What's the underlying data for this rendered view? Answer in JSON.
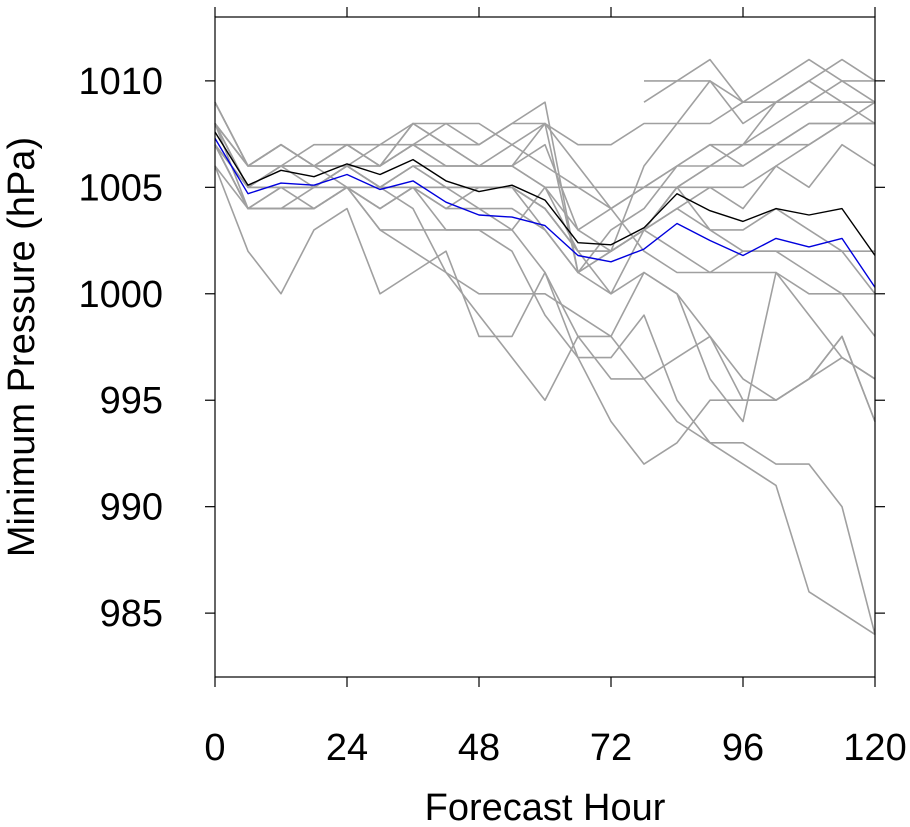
{
  "chart_data": {
    "type": "line",
    "xlabel": "Forecast Hour",
    "ylabel": "Minimum Pressure (hPa)",
    "xlim": [
      0,
      120
    ],
    "ylim": [
      982,
      1013
    ],
    "xticks": [
      0,
      24,
      48,
      72,
      96,
      120
    ],
    "xtick_labels": [
      "0",
      "24",
      "48",
      "72",
      "96",
      "120"
    ],
    "yticks": [
      985,
      990,
      995,
      1000,
      1005,
      1010
    ],
    "ytick_labels": [
      "985",
      "990",
      "995",
      "1000",
      "1005",
      "1010"
    ],
    "grid": false,
    "legend": "none",
    "colors": {
      "members": "#a0a0a0",
      "black_line": "#000000",
      "blue_line": "#0000dd"
    },
    "series": [
      {
        "color": "#a0a0a0",
        "x": [
          0,
          6,
          12,
          18,
          24,
          30,
          36,
          42,
          48,
          54,
          60,
          66,
          72,
          78,
          84,
          90,
          96,
          102,
          108,
          114,
          120
        ],
        "y": [
          1008,
          1005,
          1005,
          1005,
          1006,
          1005,
          1005,
          1005,
          1005,
          1005,
          1004,
          1002,
          1002,
          1003,
          1005,
          1006,
          1006,
          1007,
          1007,
          1008,
          1008
        ]
      },
      {
        "color": "#a0a0a0",
        "x": [
          0,
          6,
          12,
          18,
          24,
          30,
          36,
          42,
          48,
          54,
          60,
          66,
          72,
          78,
          84,
          90,
          96,
          102,
          108,
          114,
          120
        ],
        "y": [
          1007,
          1005,
          1005,
          1005,
          1006,
          1005,
          1006,
          1005,
          1005,
          1005,
          1004,
          1002,
          1002,
          1003,
          1005,
          1006,
          1007,
          1008,
          1009,
          1010,
          1009
        ]
      },
      {
        "color": "#a0a0a0",
        "x": [
          0,
          6,
          12,
          18,
          24,
          30,
          36,
          42,
          48,
          54,
          60,
          66,
          72,
          78,
          84,
          90,
          96,
          102,
          108,
          114,
          120
        ],
        "y": [
          1007,
          1004,
          1005,
          1005,
          1005,
          1004,
          1005,
          1004,
          1005,
          1005,
          1003,
          1001,
          1002,
          1003,
          1004,
          1005,
          1004,
          1006,
          1005,
          1007,
          1006
        ]
      },
      {
        "color": "#a0a0a0",
        "x": [
          0,
          6,
          12,
          18,
          24,
          30,
          36,
          42,
          48,
          54,
          60,
          66,
          72,
          78,
          84,
          90,
          96,
          102,
          108,
          114,
          120
        ],
        "y": [
          1008,
          1006,
          1007,
          1006,
          1006,
          1006,
          1007,
          1006,
          1006,
          1006,
          1005,
          1003,
          1002,
          1003,
          1005,
          1003,
          1003,
          1004,
          1003,
          1002,
          1000
        ]
      },
      {
        "color": "#a0a0a0",
        "x": [
          0,
          6,
          12,
          18,
          24,
          30,
          36,
          42,
          48,
          54,
          60,
          66,
          72,
          78,
          84,
          90,
          96,
          102,
          108,
          114,
          120
        ],
        "y": [
          1007,
          1005,
          1006,
          1005,
          1006,
          1005,
          1006,
          1005,
          1005,
          1005,
          1004,
          1002,
          1002,
          1003,
          1004,
          1003,
          1002,
          1002,
          1001,
          1000,
          998
        ]
      },
      {
        "color": "#a0a0a0",
        "x": [
          0,
          6,
          12,
          18,
          24,
          30,
          36,
          42,
          48,
          54,
          60,
          66,
          72,
          78,
          84,
          90,
          96,
          102,
          108,
          114,
          120
        ],
        "y": [
          1007,
          1004,
          1004,
          1005,
          1005,
          1004,
          1005,
          1004,
          1004,
          1004,
          1003,
          1001,
          1000,
          1001,
          1000,
          998,
          995,
          995,
          996,
          998,
          994
        ]
      },
      {
        "color": "#a0a0a0",
        "x": [
          0,
          6,
          12,
          18,
          24,
          30,
          36,
          42,
          48,
          54,
          60,
          66,
          72,
          78,
          84,
          90,
          96,
          102,
          108,
          114,
          120
        ],
        "y": [
          1006,
          1004,
          1004,
          1004,
          1005,
          1003,
          1002,
          1001,
          1000,
          1000,
          1000,
          999,
          998,
          1001,
          1000,
          996,
          994,
          1001,
          999,
          997,
          996
        ]
      },
      {
        "color": "#a0a0a0",
        "x": [
          0,
          6,
          12,
          18,
          24,
          30,
          36,
          42,
          48,
          54,
          60,
          66,
          72,
          78,
          84,
          90,
          96,
          102,
          108,
          114,
          120
        ],
        "y": [
          1006,
          1002,
          1000,
          1003,
          1004,
          1000,
          1001,
          1002,
          998,
          998,
          1001,
          997,
          997,
          999,
          995,
          993,
          993,
          992,
          992,
          990,
          984
        ]
      },
      {
        "color": "#a0a0a0",
        "x": [
          0,
          6,
          12,
          18,
          24,
          30,
          36,
          42,
          48,
          54,
          60,
          66,
          72,
          78,
          84,
          90,
          96,
          102,
          108,
          114,
          120
        ],
        "y": [
          1007,
          1004,
          1004,
          1004,
          1005,
          1004,
          1005,
          1003,
          1003,
          1002,
          999,
          997,
          994,
          992,
          993,
          995,
          995,
          995,
          996,
          998,
          994
        ]
      },
      {
        "color": "#a0a0a0",
        "x": [
          0,
          6,
          12,
          18,
          24,
          30,
          36,
          42,
          48,
          54,
          60,
          66,
          72,
          78,
          84,
          90,
          96,
          102,
          108,
          114,
          120
        ],
        "y": [
          1008,
          1004,
          1005,
          1004,
          1005,
          1005,
          1004,
          1001,
          999,
          997,
          995,
          998,
          998,
          996,
          994,
          993,
          992,
          991,
          986,
          985,
          984
        ]
      },
      {
        "color": "#a0a0a0",
        "x": [
          0,
          6,
          12,
          18,
          24,
          30,
          36,
          42,
          48,
          54,
          60,
          66,
          72,
          78,
          84,
          90,
          96,
          102,
          108,
          114,
          120
        ],
        "y": [
          1008,
          1006,
          1007,
          1006,
          1007,
          1006,
          1008,
          1007,
          1007,
          1008,
          1009,
          1001,
          1002,
          1006,
          1008,
          1010,
          1008,
          1009,
          1010,
          1011,
          1010
        ]
      },
      {
        "color": "#a0a0a0",
        "x": [
          0,
          6,
          12,
          18,
          24,
          30,
          36,
          42,
          48,
          54,
          60,
          66,
          72,
          78,
          84,
          90,
          96,
          102,
          108,
          114,
          120
        ],
        "y": [
          1009,
          1006,
          1006,
          1006,
          1007,
          1006,
          1008,
          1007,
          1006,
          1006,
          1008,
          1001,
          1003,
          1004,
          1006,
          1007,
          1007,
          1009,
          1010,
          1009,
          1008
        ]
      },
      {
        "color": "#a0a0a0",
        "x": [
          0,
          6,
          12,
          18,
          24,
          30,
          36,
          42,
          48,
          54,
          60,
          66,
          72,
          78,
          84,
          90,
          96,
          102,
          108,
          114,
          120
        ],
        "y": [
          1007,
          1005,
          1006,
          1006,
          1007,
          1006,
          1007,
          1006,
          1006,
          1006,
          1007,
          1003,
          1004,
          1005,
          1006,
          1007,
          1006,
          1007,
          1008,
          1008,
          1008
        ]
      },
      {
        "color": "#a0a0a0",
        "x": [
          0,
          6,
          12,
          18,
          24,
          30,
          36,
          42,
          48,
          54,
          60,
          66,
          72,
          78,
          84,
          90,
          96,
          102,
          108,
          114,
          120
        ],
        "y": [
          1008,
          1005,
          1006,
          1006,
          1006,
          1006,
          1007,
          1007,
          1006,
          1007,
          1008,
          1006,
          1004,
          1002,
          1001,
          1001,
          1001,
          1001,
          1000,
          1000,
          1000
        ]
      },
      {
        "color": "#a0a0a0",
        "x": [
          0,
          6,
          12,
          18,
          24,
          30,
          36,
          42,
          48,
          54,
          60,
          66,
          72,
          78,
          84,
          90,
          96,
          102,
          108,
          114,
          120
        ],
        "y": [
          1009,
          1006,
          1007,
          1006,
          1006,
          1007,
          1007,
          1008,
          1008,
          1007,
          1006,
          1005,
          1005,
          1005,
          1005,
          1005,
          1005,
          1006,
          1007,
          1008,
          1009
        ]
      },
      {
        "color": "#a0a0a0",
        "x": [
          0,
          6,
          12,
          18,
          24,
          30,
          36,
          42,
          48,
          54,
          60,
          66,
          72,
          78,
          84,
          90,
          96,
          102,
          108,
          114,
          120
        ],
        "y": [
          1008,
          1006,
          1006,
          1007,
          1007,
          1007,
          1008,
          1008,
          1007,
          1008,
          1008,
          1007,
          1007,
          1008,
          1008,
          1008,
          1009,
          1009,
          1009,
          1009,
          1009
        ]
      },
      {
        "color": "#a0a0a0",
        "x": [
          0,
          6,
          12,
          18,
          24,
          30,
          36,
          42,
          48,
          54,
          60,
          66,
          72,
          78,
          84,
          90,
          96,
          102,
          108,
          114,
          120
        ],
        "y": [
          1009,
          1006,
          1007,
          1006,
          1005,
          1003,
          1003,
          1003,
          1003,
          1003,
          1005,
          1002,
          1000,
          1003,
          1002,
          1001,
          1002,
          1002,
          1002,
          1002,
          1002
        ]
      },
      {
        "color": "#a0a0a0",
        "x": [
          0,
          6,
          12,
          18,
          24,
          30,
          36,
          42,
          48,
          54,
          60,
          66,
          72,
          78,
          84,
          90,
          96,
          102,
          108,
          114,
          120
        ],
        "y": [
          1008,
          1005,
          1005,
          1005,
          1006,
          1005,
          1006,
          1006,
          1006,
          1006,
          1005,
          1005,
          1004,
          1005,
          1006,
          1006,
          1007,
          1007,
          1008,
          1008,
          1008
        ]
      },
      {
        "color": "#a0a0a0",
        "x": [
          0,
          6,
          12,
          18,
          24,
          30,
          36,
          42,
          48,
          54,
          60,
          66,
          72,
          78,
          84,
          90,
          96,
          102,
          108,
          114,
          120
        ],
        "y": [
          1007,
          1004,
          1004,
          1004,
          1005,
          1005,
          1005,
          1005,
          1004,
          1003,
          1001,
          998,
          996,
          996,
          997,
          998,
          996,
          995,
          996,
          997,
          996
        ]
      },
      {
        "color": "#a0a0a0",
        "x": [
          78,
          84,
          90,
          96,
          102,
          108,
          114,
          120
        ],
        "y": [
          1010,
          1010,
          1011,
          1009,
          1009,
          1009,
          1009,
          1009
        ]
      },
      {
        "color": "#a0a0a0",
        "x": [
          78,
          84,
          90,
          96,
          102,
          108,
          114,
          120
        ],
        "y": [
          1009,
          1010,
          1010,
          1009,
          1010,
          1011,
          1010,
          1010
        ]
      },
      {
        "color": "#000000",
        "x": [
          0,
          6,
          12,
          18,
          24,
          30,
          36,
          42,
          48,
          54,
          60,
          66,
          72,
          78,
          84,
          90,
          96,
          102,
          108,
          114,
          120
        ],
        "y": [
          1007.6,
          1005.1,
          1005.8,
          1005.5,
          1006.1,
          1005.6,
          1006.3,
          1005.3,
          1004.8,
          1005.1,
          1004.4,
          1002.4,
          1002.3,
          1003.1,
          1004.7,
          1003.9,
          1003.4,
          1004.0,
          1003.7,
          1004.0,
          1001.8
        ]
      },
      {
        "color": "#0000dd",
        "x": [
          0,
          6,
          12,
          18,
          24,
          30,
          36,
          42,
          48,
          54,
          60,
          66,
          72,
          78,
          84,
          90,
          96,
          102,
          108,
          114,
          120
        ],
        "y": [
          1007.3,
          1004.7,
          1005.2,
          1005.1,
          1005.6,
          1004.9,
          1005.3,
          1004.3,
          1003.7,
          1003.6,
          1003.2,
          1001.8,
          1001.5,
          1002.1,
          1003.3,
          1002.5,
          1001.8,
          1002.6,
          1002.2,
          1002.6,
          1000.3
        ]
      }
    ]
  }
}
